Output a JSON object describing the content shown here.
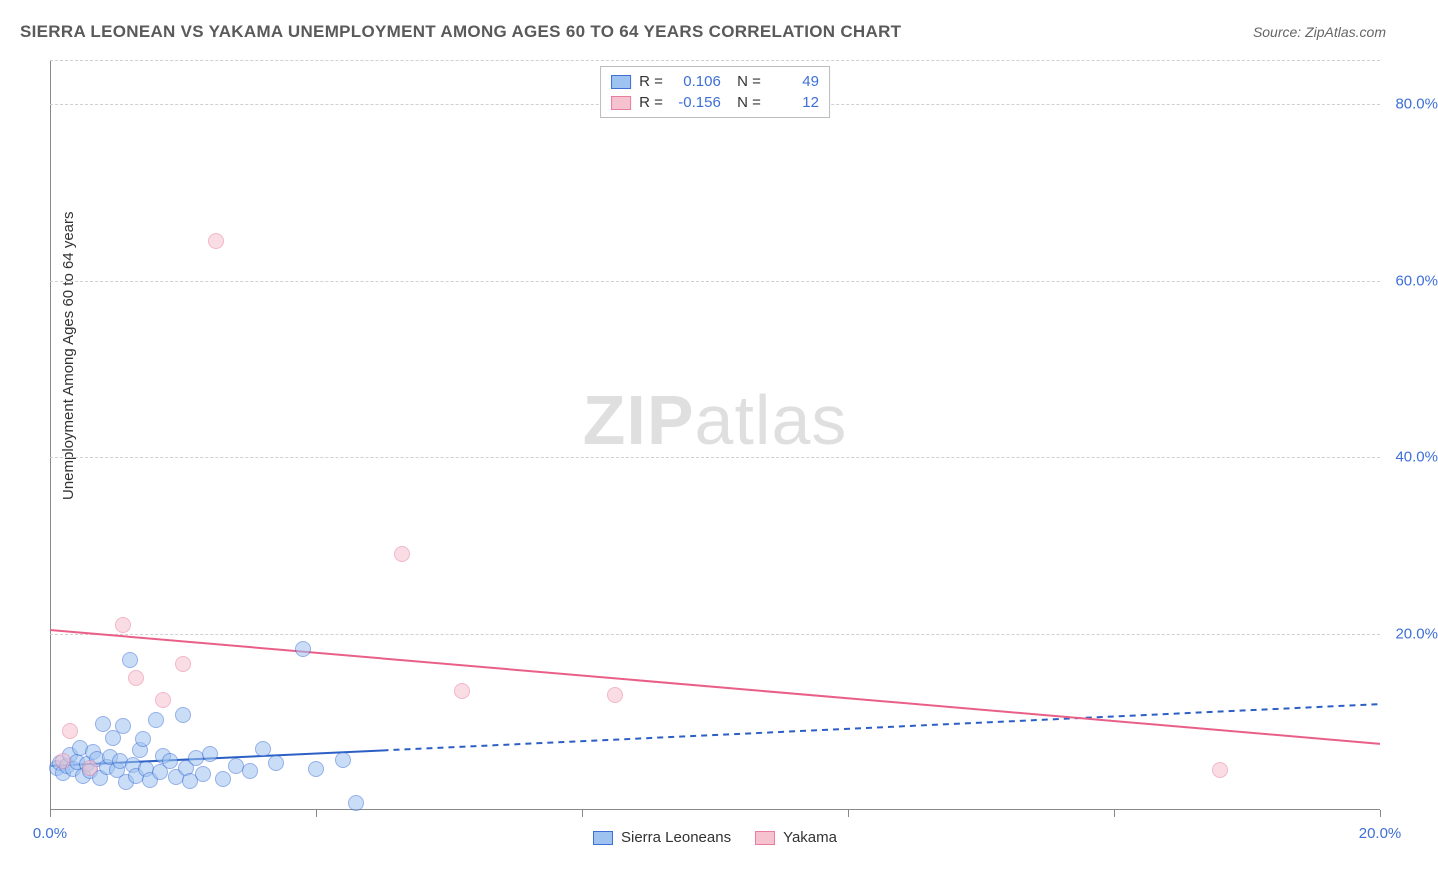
{
  "title": "SIERRA LEONEAN VS YAKAMA UNEMPLOYMENT AMONG AGES 60 TO 64 YEARS CORRELATION CHART",
  "source": "Source: ZipAtlas.com",
  "y_axis_label": "Unemployment Among Ages 60 to 64 years",
  "watermark_bold": "ZIP",
  "watermark_light": "atlas",
  "chart": {
    "type": "scatter",
    "xlim": [
      0,
      20
    ],
    "ylim": [
      0,
      85
    ],
    "x_ticks": [
      0,
      4,
      8,
      12,
      16,
      20
    ],
    "x_tick_labels": [
      "0.0%",
      "",
      "",
      "",
      "",
      "20.0%"
    ],
    "y_ticks": [
      20,
      40,
      60,
      80
    ],
    "y_tick_labels": [
      "20.0%",
      "40.0%",
      "60.0%",
      "80.0%"
    ],
    "grid_y": [
      20,
      40,
      60,
      80,
      85
    ],
    "grid_color": "#d0d0d0",
    "background_color": "#ffffff",
    "point_radius": 8,
    "point_opacity": 0.55,
    "series": [
      {
        "name": "Sierra Leoneans",
        "color_fill": "#9ec3f0",
        "color_stroke": "#3d6fd6",
        "R": "0.106",
        "N": "49",
        "trend": {
          "x1": 0,
          "y1": 5.0,
          "x2": 20,
          "y2": 12.0,
          "solid_until_x": 5.0,
          "color": "#2c5fc4",
          "width": 2,
          "dash": "6,5"
        },
        "points": [
          [
            0.1,
            4.8
          ],
          [
            0.15,
            5.3
          ],
          [
            0.2,
            4.2
          ],
          [
            0.25,
            5.0
          ],
          [
            0.3,
            6.2
          ],
          [
            0.35,
            4.6
          ],
          [
            0.4,
            5.4
          ],
          [
            0.45,
            7.0
          ],
          [
            0.5,
            3.8
          ],
          [
            0.55,
            5.2
          ],
          [
            0.6,
            4.4
          ],
          [
            0.65,
            6.6
          ],
          [
            0.7,
            5.8
          ],
          [
            0.75,
            3.6
          ],
          [
            0.8,
            9.8
          ],
          [
            0.85,
            4.9
          ],
          [
            0.9,
            6.0
          ],
          [
            0.95,
            8.2
          ],
          [
            1.0,
            4.5
          ],
          [
            1.05,
            5.6
          ],
          [
            1.1,
            9.5
          ],
          [
            1.15,
            3.2
          ],
          [
            1.2,
            17.0
          ],
          [
            1.25,
            5.1
          ],
          [
            1.3,
            3.9
          ],
          [
            1.35,
            6.8
          ],
          [
            1.4,
            8.0
          ],
          [
            1.45,
            4.7
          ],
          [
            1.5,
            3.4
          ],
          [
            1.6,
            10.2
          ],
          [
            1.65,
            4.3
          ],
          [
            1.7,
            6.1
          ],
          [
            1.8,
            5.5
          ],
          [
            1.9,
            3.7
          ],
          [
            2.0,
            10.8
          ],
          [
            2.05,
            4.8
          ],
          [
            2.1,
            3.3
          ],
          [
            2.2,
            5.9
          ],
          [
            2.3,
            4.1
          ],
          [
            2.4,
            6.4
          ],
          [
            2.6,
            3.5
          ],
          [
            2.8,
            5.0
          ],
          [
            3.0,
            4.4
          ],
          [
            3.2,
            6.9
          ],
          [
            3.4,
            5.3
          ],
          [
            3.8,
            18.2
          ],
          [
            4.0,
            4.6
          ],
          [
            4.4,
            5.7
          ],
          [
            4.6,
            0.8
          ]
        ]
      },
      {
        "name": "Yakama",
        "color_fill": "#f6c2cf",
        "color_stroke": "#e87da0",
        "R": "-0.156",
        "N": "12",
        "trend": {
          "x1": 0,
          "y1": 20.4,
          "x2": 20,
          "y2": 7.5,
          "solid_until_x": 20,
          "color": "#ea5f88",
          "width": 2,
          "dash": ""
        },
        "points": [
          [
            0.2,
            5.5
          ],
          [
            0.3,
            9.0
          ],
          [
            0.6,
            4.8
          ],
          [
            1.1,
            21.0
          ],
          [
            1.3,
            15.0
          ],
          [
            1.7,
            12.5
          ],
          [
            2.0,
            16.5
          ],
          [
            2.5,
            64.5
          ],
          [
            5.3,
            29.0
          ],
          [
            6.2,
            13.5
          ],
          [
            8.5,
            13.0
          ],
          [
            17.6,
            4.5
          ]
        ]
      }
    ],
    "legend_bottom": [
      {
        "label": "Sierra Leoneans",
        "fill": "#9ec3f0",
        "stroke": "#3d6fd6"
      },
      {
        "label": "Yakama",
        "fill": "#f6c2cf",
        "stroke": "#e87da0"
      }
    ]
  }
}
